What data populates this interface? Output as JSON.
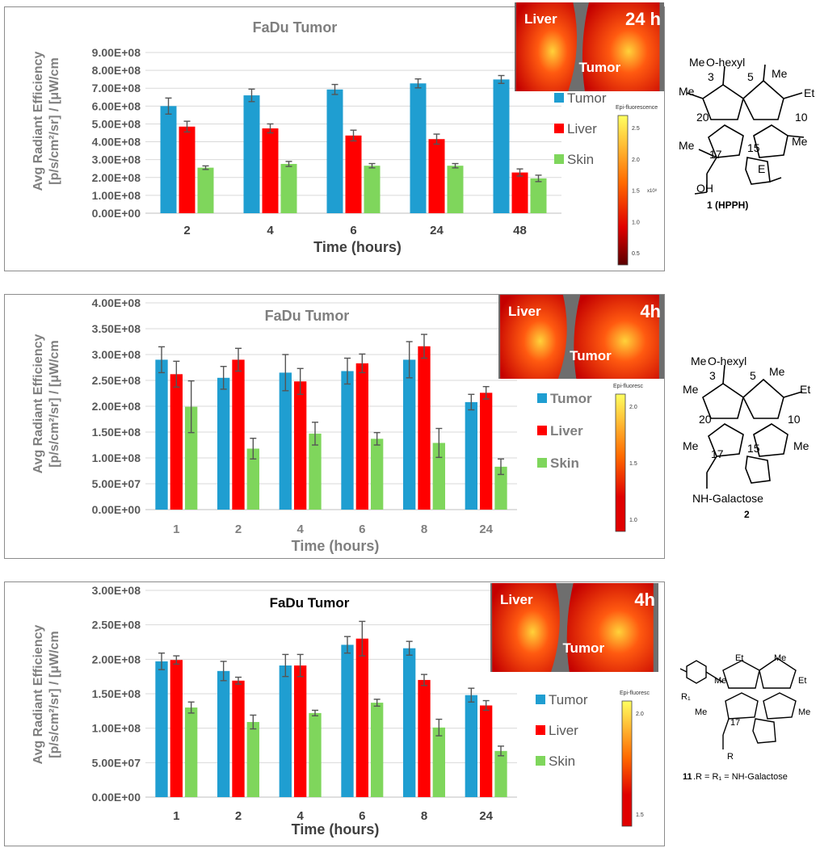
{
  "colors": {
    "tumor": "#1f9ed1",
    "liver": "#ff0000",
    "skin": "#7fd65c",
    "grid": "#d9d9d9",
    "error": "#555555"
  },
  "charts": [
    {
      "id": "p1",
      "type": "bar",
      "title": "FaDu Tumor",
      "ylabel_line1": "Avg Radiant Efficiency",
      "ylabel_line2": "[p/s/cm²/sr] / [μW/cm",
      "xlabel": "Time (hours)",
      "categories": [
        "2",
        "4",
        "6",
        "24",
        "48"
      ],
      "ymax": 900000000,
      "ytick_labels": [
        "0.00E+00",
        "1.00E+08",
        "2.00E+08",
        "3.00E+08",
        "4.00E+08",
        "5.00E+08",
        "6.00E+08",
        "7.00E+08",
        "8.00E+08",
        "9.00E+08"
      ],
      "series": [
        {
          "name": "Tumor",
          "key": "tumor",
          "values": [
            600000000,
            660000000,
            693000000,
            727000000,
            749000000
          ],
          "errors": [
            45000000,
            35000000,
            28000000,
            25000000,
            22000000
          ]
        },
        {
          "name": "Liver",
          "key": "liver",
          "values": [
            485000000,
            475000000,
            435000000,
            415000000,
            228000000
          ],
          "errors": [
            30000000,
            25000000,
            30000000,
            28000000,
            20000000
          ]
        },
        {
          "name": "Skin",
          "key": "skin",
          "values": [
            255000000,
            276000000,
            266000000,
            266000000,
            195000000
          ],
          "errors": [
            10000000,
            14000000,
            12000000,
            12000000,
            18000000
          ]
        }
      ],
      "legend": [
        "Tumor",
        "Liver",
        "Skin"
      ],
      "image_labels": {
        "organ": "Liver",
        "tumor": "Tumor",
        "time": "24 h"
      },
      "colorbar": {
        "title": "Epi-fluorescence",
        "ticks": [
          "2.5",
          "2.0",
          "1.5",
          "1.0",
          "0.5"
        ],
        "exp": "x10⁸"
      }
    },
    {
      "id": "p2",
      "type": "bar",
      "title": "FaDu Tumor",
      "ylabel_line1": "Avg Radiant Efficiency",
      "ylabel_line2": "[p/s/cm²/sr] / [μW/cm",
      "xlabel": "Time (hours)",
      "categories": [
        "1",
        "2",
        "4",
        "6",
        "8",
        "24"
      ],
      "ymax": 400000000,
      "ytick_labels": [
        "0.00E+00",
        "5.00E+07",
        "1.00E+08",
        "1.50E+08",
        "2.00E+08",
        "2.50E+08",
        "3.00E+08",
        "3.50E+08",
        "4.00E+08"
      ],
      "series": [
        {
          "name": "Tumor",
          "key": "tumor",
          "values": [
            290000000,
            255000000,
            265000000,
            268000000,
            290000000,
            208000000
          ],
          "errors": [
            25000000,
            22000000,
            35000000,
            25000000,
            35000000,
            15000000
          ]
        },
        {
          "name": "Liver",
          "key": "liver",
          "values": [
            262000000,
            290000000,
            248000000,
            283000000,
            316000000,
            226000000
          ],
          "errors": [
            25000000,
            22000000,
            25000000,
            18000000,
            23000000,
            12000000
          ]
        },
        {
          "name": "Skin",
          "key": "skin",
          "values": [
            199000000,
            118000000,
            147000000,
            137000000,
            129000000,
            83000000
          ],
          "errors": [
            50000000,
            20000000,
            22000000,
            12000000,
            28000000,
            15000000
          ]
        }
      ],
      "legend": [
        "Tumor",
        "Liver",
        "Skin"
      ],
      "image_labels": {
        "organ": "Liver",
        "tumor": "Tumor",
        "time": "4h"
      },
      "colorbar": {
        "title": "Epi-fluoresc",
        "ticks": [
          "2.0",
          "1.5",
          "1.0"
        ],
        "exp": ""
      }
    },
    {
      "id": "p3",
      "type": "bar",
      "title": "FaDu Tumor",
      "ylabel_line1": "Avg Radiant Efficiency",
      "ylabel_line2": "[p/s/cm²/sr] / [μW/cm",
      "xlabel": "Time (hours)",
      "categories": [
        "1",
        "2",
        "4",
        "6",
        "8",
        "24"
      ],
      "ymax": 300000000,
      "ytick_labels": [
        "0.00E+00",
        "5.00E+07",
        "1.00E+08",
        "1.50E+08",
        "2.00E+08",
        "2.50E+08",
        "3.00E+08"
      ],
      "series": [
        {
          "name": "Tumor",
          "key": "tumor",
          "values": [
            197000000,
            183000000,
            191000000,
            221000000,
            216000000,
            148000000
          ],
          "errors": [
            12000000,
            14000000,
            16000000,
            12000000,
            10000000,
            10000000
          ]
        },
        {
          "name": "Liver",
          "key": "liver",
          "values": [
            199000000,
            169000000,
            191000000,
            230000000,
            170000000,
            133000000
          ],
          "errors": [
            6000000,
            5000000,
            16000000,
            25000000,
            8000000,
            7000000
          ]
        },
        {
          "name": "Skin",
          "key": "skin",
          "values": [
            130000000,
            109000000,
            122000000,
            137000000,
            101000000,
            67000000
          ],
          "errors": [
            8000000,
            10000000,
            4000000,
            5000000,
            12000000,
            7000000
          ]
        }
      ],
      "legend": [
        "Tumor",
        "Liver",
        "Skin"
      ],
      "image_labels": {
        "organ": "Liver",
        "tumor": "Tumor",
        "time": "4h"
      },
      "colorbar": {
        "title": "Epi-fluoresc",
        "ticks": [
          "2.0",
          "1.5"
        ],
        "exp": ""
      }
    }
  ],
  "structures": [
    {
      "substituent": "O-hexyl",
      "acetyl": "Me",
      "et": "Et",
      "me": "Me",
      "nums": [
        "3",
        "5",
        "10",
        "15",
        "17",
        "20"
      ],
      "ring": "E",
      "acid": "OH",
      "label": "1 (HPPH)"
    },
    {
      "substituent": "O-hexyl",
      "acetyl": "Me",
      "et": "Et",
      "me": "Me",
      "nums": [
        "3",
        "5",
        "10",
        "15",
        "17",
        "20"
      ],
      "tail": "NH-Galactose",
      "label": "2"
    },
    {
      "et": "Et",
      "me": "Me",
      "nums": [
        "17"
      ],
      "r1": "R₁",
      "r": "R",
      "label_num": "11",
      "label_rest": ".R = R₁ = NH-Galactose"
    }
  ]
}
